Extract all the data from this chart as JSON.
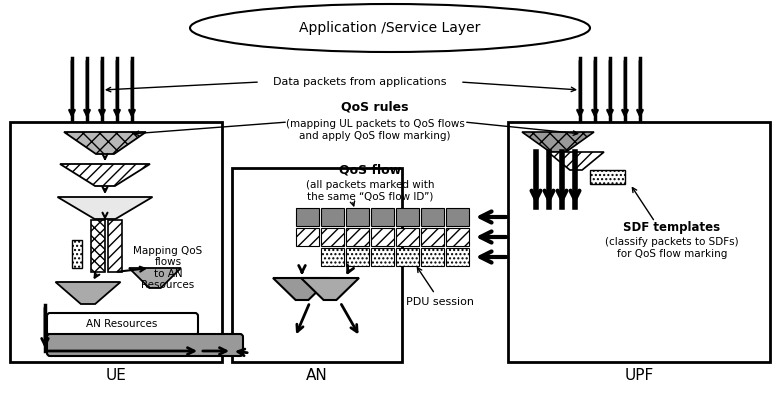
{
  "bg_color": "#ffffff",
  "fig_width": 7.81,
  "fig_height": 3.93,
  "text": {
    "app_layer": "Application /Service Layer",
    "data_packets": "Data packets from applications",
    "qos_rules_title": "QoS rules",
    "qos_rules_body": "(mapping UL packets to QoS flows\nand apply QoS flow marking)",
    "qos_flow_title": "QoS flow",
    "qos_flow_body": "(all packets marked with\nthe same “QoS flow ID”)",
    "mapping_qos": "Mapping QoS\nflows\nto AN\nResources",
    "an_resources": "AN Resources",
    "pdu_session": "PDU session",
    "sdf_title": "SDF templates",
    "sdf_body": "(classify packets to SDFs)\nfor QoS flow marking",
    "ue": "UE",
    "an": "AN",
    "upf": "UPF"
  }
}
